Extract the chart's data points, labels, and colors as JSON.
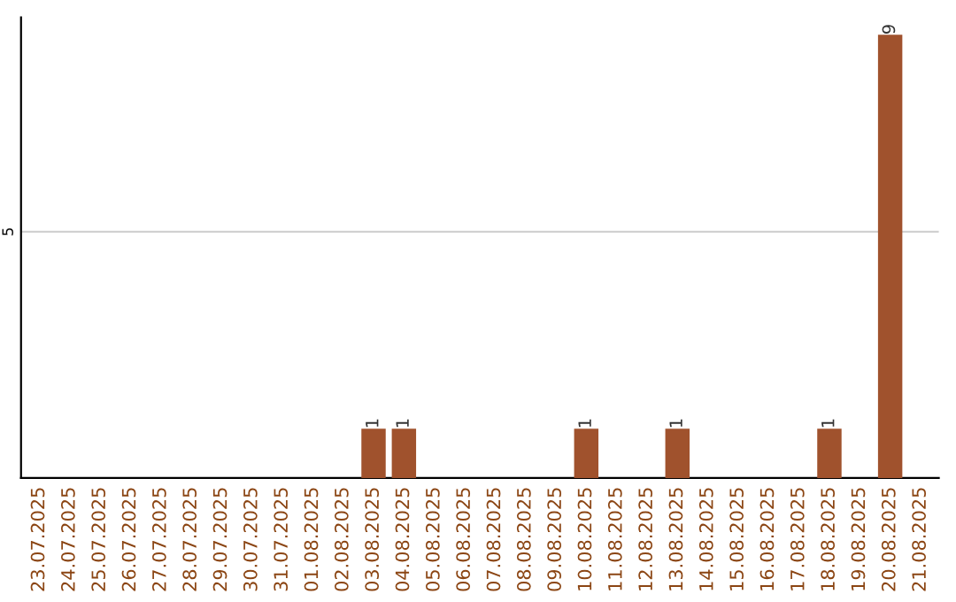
{
  "chart_data": {
    "type": "bar",
    "categories": [
      "23.07.2025",
      "24.07.2025",
      "25.07.2025",
      "26.07.2025",
      "27.07.2025",
      "28.07.2025",
      "29.07.2025",
      "30.07.2025",
      "31.07.2025",
      "01.08.2025",
      "02.08.2025",
      "03.08.2025",
      "04.08.2025",
      "05.08.2025",
      "06.08.2025",
      "07.08.2025",
      "08.08.2025",
      "09.08.2025",
      "10.08.2025",
      "11.08.2025",
      "12.08.2025",
      "13.08.2025",
      "14.08.2025",
      "15.08.2025",
      "16.08.2025",
      "17.08.2025",
      "18.08.2025",
      "19.08.2025",
      "20.08.2025",
      "21.08.2025"
    ],
    "values": [
      0,
      0,
      0,
      0,
      0,
      0,
      0,
      0,
      0,
      0,
      0,
      1,
      1,
      0,
      0,
      0,
      0,
      0,
      1,
      0,
      0,
      1,
      0,
      0,
      0,
      0,
      1,
      0,
      9,
      0
    ],
    "value_labels": [
      null,
      null,
      null,
      null,
      null,
      null,
      null,
      null,
      null,
      null,
      null,
      "1",
      "1",
      null,
      null,
      null,
      null,
      null,
      "1",
      null,
      null,
      "1",
      null,
      null,
      null,
      null,
      "1",
      null,
      "9",
      null
    ],
    "color": "#a0522d",
    "ylim": [
      0,
      9.35
    ],
    "yticks": [
      5
    ],
    "grid": "y",
    "legend": false
  }
}
